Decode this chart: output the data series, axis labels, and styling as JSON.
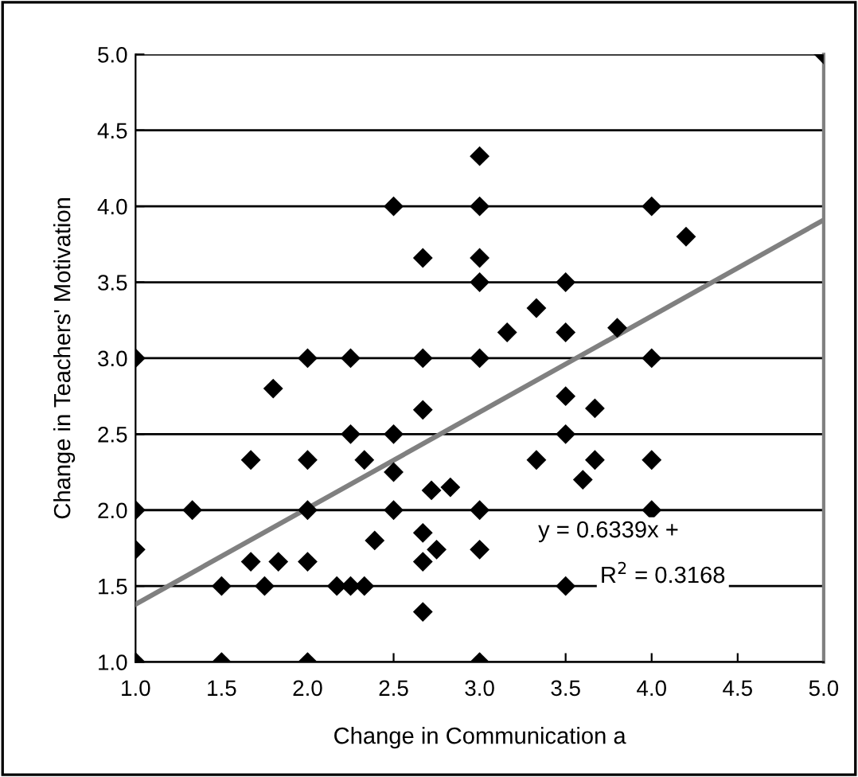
{
  "chart_data": {
    "type": "scatter",
    "xlabel": "Change in Communication a",
    "ylabel": "Change in Teachers' Motivation",
    "annotations": [
      "y = 0.6339x +",
      "R$^{2}$ = 0.3168"
    ],
    "xlim": [
      1.0,
      5.0
    ],
    "ylim": [
      1.0,
      5.0
    ],
    "xticks": [
      {
        "value": 1.0,
        "label": "1.0"
      },
      {
        "value": 1.5,
        "label": "1.5"
      },
      {
        "value": 2.0,
        "label": "2.0"
      },
      {
        "value": 2.5,
        "label": "2.5"
      },
      {
        "value": 3.0,
        "label": "3.0"
      },
      {
        "value": 3.5,
        "label": "3.5"
      },
      {
        "value": 4.0,
        "label": "4.0"
      },
      {
        "value": 4.5,
        "label": "4.5"
      },
      {
        "value": 5.0,
        "label": "5.0"
      }
    ],
    "yticks": [
      {
        "value": 1.0,
        "label": "1.0"
      },
      {
        "value": 1.5,
        "label": "1.5"
      },
      {
        "value": 2.0,
        "label": "2.0"
      },
      {
        "value": 2.5,
        "label": "2.5"
      },
      {
        "value": 3.0,
        "label": "3.0"
      },
      {
        "value": 3.5,
        "label": "3.5"
      },
      {
        "value": 4.0,
        "label": "4.0"
      },
      {
        "value": 4.5,
        "label": "4.5"
      },
      {
        "value": 5.0,
        "label": "5.0"
      }
    ],
    "grid": "y",
    "legend": false,
    "series": [
      {
        "marker": "diamond",
        "color": "#000000",
        "x": [
          1.0,
          1.0,
          1.0,
          1.0,
          1.33,
          1.5,
          1.5,
          1.67,
          1.67,
          1.75,
          1.8,
          1.83,
          2.0,
          2.0,
          2.0,
          2.0,
          2.0,
          2.17,
          2.25,
          2.25,
          2.25,
          2.33,
          2.33,
          2.39,
          2.5,
          2.5,
          2.5,
          2.5,
          2.67,
          2.67,
          2.67,
          2.67,
          2.67,
          2.67,
          2.72,
          2.75,
          2.83,
          3.0,
          3.0,
          3.0,
          3.0,
          3.0,
          3.0,
          3.0,
          3.0,
          3.16,
          3.33,
          3.33,
          3.5,
          3.5,
          3.5,
          3.5,
          3.5,
          3.6,
          3.67,
          3.67,
          3.8,
          4.0,
          4.0,
          4.0,
          4.0,
          4.2,
          5.0
        ],
        "values": [
          3.0,
          2.0,
          1.74,
          1.0,
          2.0,
          1.5,
          1.0,
          2.33,
          1.66,
          1.5,
          2.8,
          1.66,
          3.0,
          2.33,
          2.0,
          1.66,
          1.0,
          1.5,
          3.0,
          2.5,
          1.5,
          2.33,
          1.5,
          1.8,
          4.0,
          2.5,
          2.25,
          2.0,
          3.66,
          3.0,
          2.66,
          1.85,
          1.66,
          1.33,
          2.13,
          1.74,
          2.15,
          4.33,
          4.0,
          3.66,
          3.5,
          3.0,
          2.0,
          1.74,
          1.0,
          3.17,
          3.33,
          2.33,
          3.5,
          3.17,
          2.75,
          2.5,
          1.5,
          2.2,
          2.67,
          2.33,
          3.2,
          4.0,
          3.0,
          2.33,
          2.0,
          3.8,
          5.0
        ]
      },
      {
        "type": "line",
        "color": "#808080",
        "line_style": "solid",
        "x": [
          1.0,
          5.0
        ],
        "values": [
          1.38,
          3.91
        ]
      }
    ]
  }
}
